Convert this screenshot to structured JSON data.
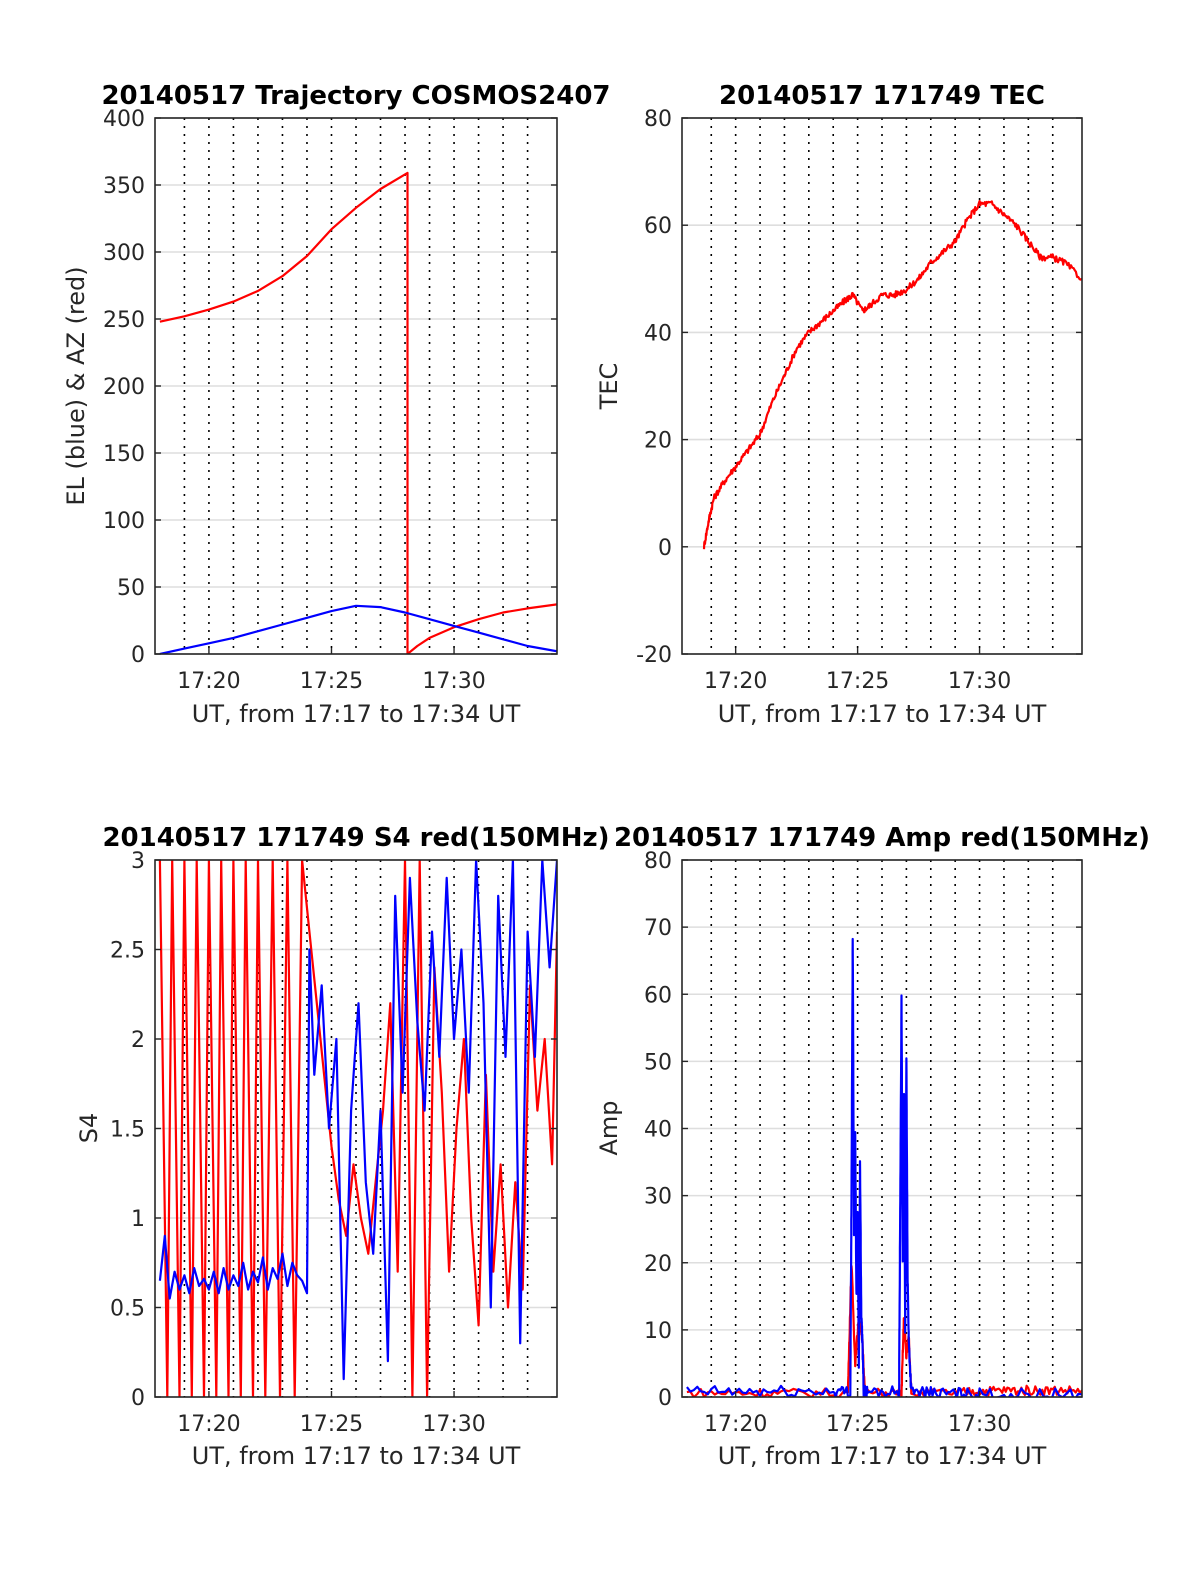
{
  "chart_data": [
    {
      "type": "line",
      "title": "20140517 Trajectory COSMOS2407",
      "xlabel": "UT, from 17:17 to 17:34 UT",
      "ylabel": "EL (blue) & AZ (red)",
      "xlim": [
        17.8,
        34.2
      ],
      "ylim": [
        0,
        400
      ],
      "xticks": [
        20,
        25,
        30
      ],
      "xticklabels": [
        "17:20",
        "17:25",
        "17:30"
      ],
      "yticks": [
        0,
        50,
        100,
        150,
        200,
        250,
        300,
        350,
        400
      ],
      "yticklabels": [
        "0",
        "50",
        "100",
        "150",
        "200",
        "250",
        "300",
        "350",
        "400"
      ],
      "grid": "vertical dotted",
      "series": [
        {
          "color": "#ff0000",
          "x": [
            18,
            19,
            20,
            21,
            22,
            23,
            24,
            25,
            26,
            27,
            28.1,
            28.1,
            28.5,
            29,
            30,
            31,
            32,
            33,
            34.2
          ],
          "y": [
            248,
            252,
            257,
            263,
            271,
            282,
            297,
            317,
            333,
            347,
            359,
            0,
            6,
            12,
            20,
            26,
            31,
            34,
            37
          ]
        },
        {
          "color": "#0000ff",
          "x": [
            18,
            19,
            20,
            21,
            22,
            23,
            24,
            25,
            26,
            27,
            28,
            29,
            30,
            31,
            32,
            33,
            34.2
          ],
          "y": [
            0,
            4,
            8,
            12,
            17,
            22,
            27,
            32,
            36,
            35,
            31,
            26,
            21,
            16,
            11,
            6,
            2
          ]
        }
      ]
    },
    {
      "type": "line",
      "title": "20140517 171749 TEC",
      "xlabel": "UT, from 17:17 to 17:34 UT",
      "ylabel": "TEC",
      "xlim": [
        17.8,
        34.2
      ],
      "ylim": [
        -20,
        80
      ],
      "xticks": [
        20,
        25,
        30
      ],
      "xticklabels": [
        "17:20",
        "17:25",
        "17:30"
      ],
      "yticks": [
        -20,
        0,
        20,
        40,
        60,
        80
      ],
      "yticklabels": [
        "-20",
        "0",
        "20",
        "40",
        "60",
        "80"
      ],
      "grid": "vertical dotted",
      "series": [
        {
          "color": "#ff0000",
          "noise": 0.6,
          "x": [
            18.7,
            18.9,
            19.1,
            19.5,
            20,
            20.5,
            21,
            21.5,
            22,
            22.5,
            23,
            23.5,
            24,
            24.5,
            24.8,
            25.2,
            25.5,
            26,
            26.5,
            27,
            27.5,
            28,
            28.5,
            29,
            29.5,
            30,
            30.5,
            31,
            31.5,
            32,
            32.5,
            33,
            33.5,
            34.2
          ],
          "y": [
            0,
            5,
            9,
            12,
            15,
            18,
            21,
            27,
            32,
            37,
            40,
            42,
            44,
            46,
            47,
            44,
            45,
            47,
            47,
            48,
            50,
            53,
            55,
            57,
            61,
            64,
            64,
            62,
            60,
            57,
            54,
            54,
            53,
            50
          ]
        }
      ]
    },
    {
      "type": "line",
      "title": "20140517 171749 S4 red(150MHz)",
      "xlabel": "UT, from 17:17 to 17:34 UT",
      "ylabel": "S4",
      "xlim": [
        17.8,
        34.2
      ],
      "ylim": [
        0,
        3
      ],
      "xticks": [
        20,
        25,
        30
      ],
      "xticklabels": [
        "17:20",
        "17:25",
        "17:30"
      ],
      "yticks": [
        0,
        0.5,
        1,
        1.5,
        2,
        2.5,
        3
      ],
      "yticklabels": [
        "0",
        "0.5",
        "1",
        "1.5",
        "2",
        "2.5",
        "3"
      ],
      "grid": "vertical dotted",
      "series": [
        {
          "color": "#ff0000",
          "x": [
            18.0,
            18.3,
            18.5,
            18.8,
            19.0,
            19.3,
            19.5,
            19.8,
            20.0,
            20.3,
            20.5,
            20.8,
            21.0,
            21.3,
            21.5,
            21.8,
            22.0,
            22.3,
            22.6,
            22.9,
            23.2,
            23.5,
            23.8,
            24.1,
            24.4,
            24.7,
            25.0,
            25.3,
            25.6,
            25.9,
            26.2,
            26.5,
            26.8,
            27.1,
            27.4,
            27.7,
            28.0,
            28.3,
            28.6,
            28.9,
            29.2,
            29.5,
            29.8,
            30.1,
            30.4,
            30.7,
            31.0,
            31.3,
            31.6,
            31.9,
            32.2,
            32.5,
            32.8,
            33.1,
            33.4,
            33.7,
            34.0,
            34.2
          ],
          "y": [
            3,
            0,
            3,
            0,
            3,
            0,
            3,
            0,
            3,
            0,
            3,
            0,
            3,
            0,
            3,
            0,
            3,
            0,
            3,
            0,
            3,
            0,
            3,
            2.6,
            2.2,
            1.8,
            1.4,
            1.1,
            0.9,
            1.3,
            1.0,
            0.8,
            1.2,
            1.6,
            2.2,
            0.7,
            3.0,
            0.0,
            3.0,
            0.0,
            2.4,
            1.7,
            0.7,
            1.5,
            2.0,
            1.0,
            0.4,
            1.8,
            0.7,
            1.3,
            0.5,
            1.2,
            0.6,
            2.3,
            1.6,
            2.0,
            1.3,
            2.6
          ]
        },
        {
          "color": "#0000ff",
          "x": [
            18.0,
            18.2,
            18.4,
            18.6,
            18.8,
            19.0,
            19.2,
            19.4,
            19.6,
            19.8,
            20.0,
            20.2,
            20.4,
            20.6,
            20.8,
            21.0,
            21.2,
            21.4,
            21.6,
            21.8,
            22.0,
            22.2,
            22.4,
            22.6,
            22.8,
            23.0,
            23.2,
            23.4,
            23.6,
            23.8,
            24.0,
            24.1,
            24.3,
            24.6,
            24.9,
            25.2,
            25.5,
            25.8,
            26.1,
            26.4,
            26.7,
            27.0,
            27.3,
            27.6,
            27.9,
            28.2,
            28.5,
            28.8,
            29.1,
            29.4,
            29.7,
            30.0,
            30.3,
            30.6,
            30.9,
            31.2,
            31.5,
            31.8,
            32.1,
            32.4,
            32.7,
            33.0,
            33.3,
            33.6,
            33.9,
            34.2
          ],
          "y": [
            0.65,
            0.9,
            0.55,
            0.7,
            0.6,
            0.68,
            0.58,
            0.72,
            0.62,
            0.66,
            0.6,
            0.7,
            0.58,
            0.72,
            0.6,
            0.68,
            0.62,
            0.75,
            0.6,
            0.7,
            0.64,
            0.78,
            0.6,
            0.72,
            0.66,
            0.8,
            0.62,
            0.75,
            0.68,
            0.65,
            0.58,
            2.5,
            1.8,
            2.3,
            1.5,
            2.0,
            0.1,
            1.6,
            2.2,
            1.2,
            0.8,
            1.6,
            0.2,
            2.8,
            1.7,
            2.9,
            2.1,
            1.6,
            2.6,
            1.9,
            2.9,
            2.0,
            2.5,
            1.7,
            3.0,
            2.2,
            0.5,
            2.8,
            1.9,
            3.0,
            0.3,
            2.6,
            1.9,
            3.0,
            2.4,
            3.0
          ]
        }
      ]
    },
    {
      "type": "line",
      "title": "20140517 171749 Amp red(150MHz)",
      "xlabel": "UT, from 17:17 to 17:34 UT",
      "ylabel": "Amp",
      "xlim": [
        17.8,
        34.2
      ],
      "ylim": [
        0,
        80
      ],
      "xticks": [
        20,
        25,
        30
      ],
      "xticklabels": [
        "17:20",
        "17:25",
        "17:30"
      ],
      "yticks": [
        0,
        10,
        20,
        30,
        40,
        50,
        60,
        70,
        80
      ],
      "yticklabels": [
        "0",
        "10",
        "20",
        "30",
        "40",
        "50",
        "60",
        "70",
        "80"
      ],
      "grid": "vertical dotted",
      "series": [
        {
          "color": "#ff0000",
          "noise": 0.7,
          "x": [
            18.0,
            20.0,
            22.0,
            24.6,
            24.75,
            24.9,
            25.05,
            25.2,
            25.3,
            26.8,
            26.9,
            27.0,
            27.1,
            27.2,
            29.0,
            30.0,
            31.0,
            32.0,
            33.0,
            34.2
          ],
          "y": [
            0.6,
            0.6,
            0.6,
            0.6,
            20,
            5,
            12,
            8,
            0.6,
            0.6,
            12,
            6,
            9,
            0.6,
            0.6,
            0.9,
            1.0,
            1.0,
            1.0,
            1.0
          ]
        },
        {
          "color": "#0000ff",
          "noise": 0.9,
          "x": [
            18.0,
            20.0,
            22.0,
            24.0,
            24.7,
            24.75,
            24.8,
            24.85,
            24.9,
            24.95,
            25.0,
            25.05,
            25.1,
            25.15,
            25.2,
            25.25,
            25.4,
            26.7,
            26.75,
            26.8,
            26.85,
            26.9,
            26.95,
            27.0,
            27.05,
            27.1,
            27.2,
            28.0,
            29.0,
            30.0,
            32.0,
            34.2
          ],
          "y": [
            0.8,
            0.8,
            0.8,
            0.8,
            0.8,
            30,
            69,
            25,
            40,
            15,
            28,
            5,
            35,
            12,
            8,
            0.8,
            0.8,
            0.8,
            30,
            59,
            20,
            45,
            10,
            50,
            18,
            8,
            0.8,
            0.6,
            0.5,
            0.4,
            0.4,
            0.4
          ]
        }
      ]
    }
  ]
}
